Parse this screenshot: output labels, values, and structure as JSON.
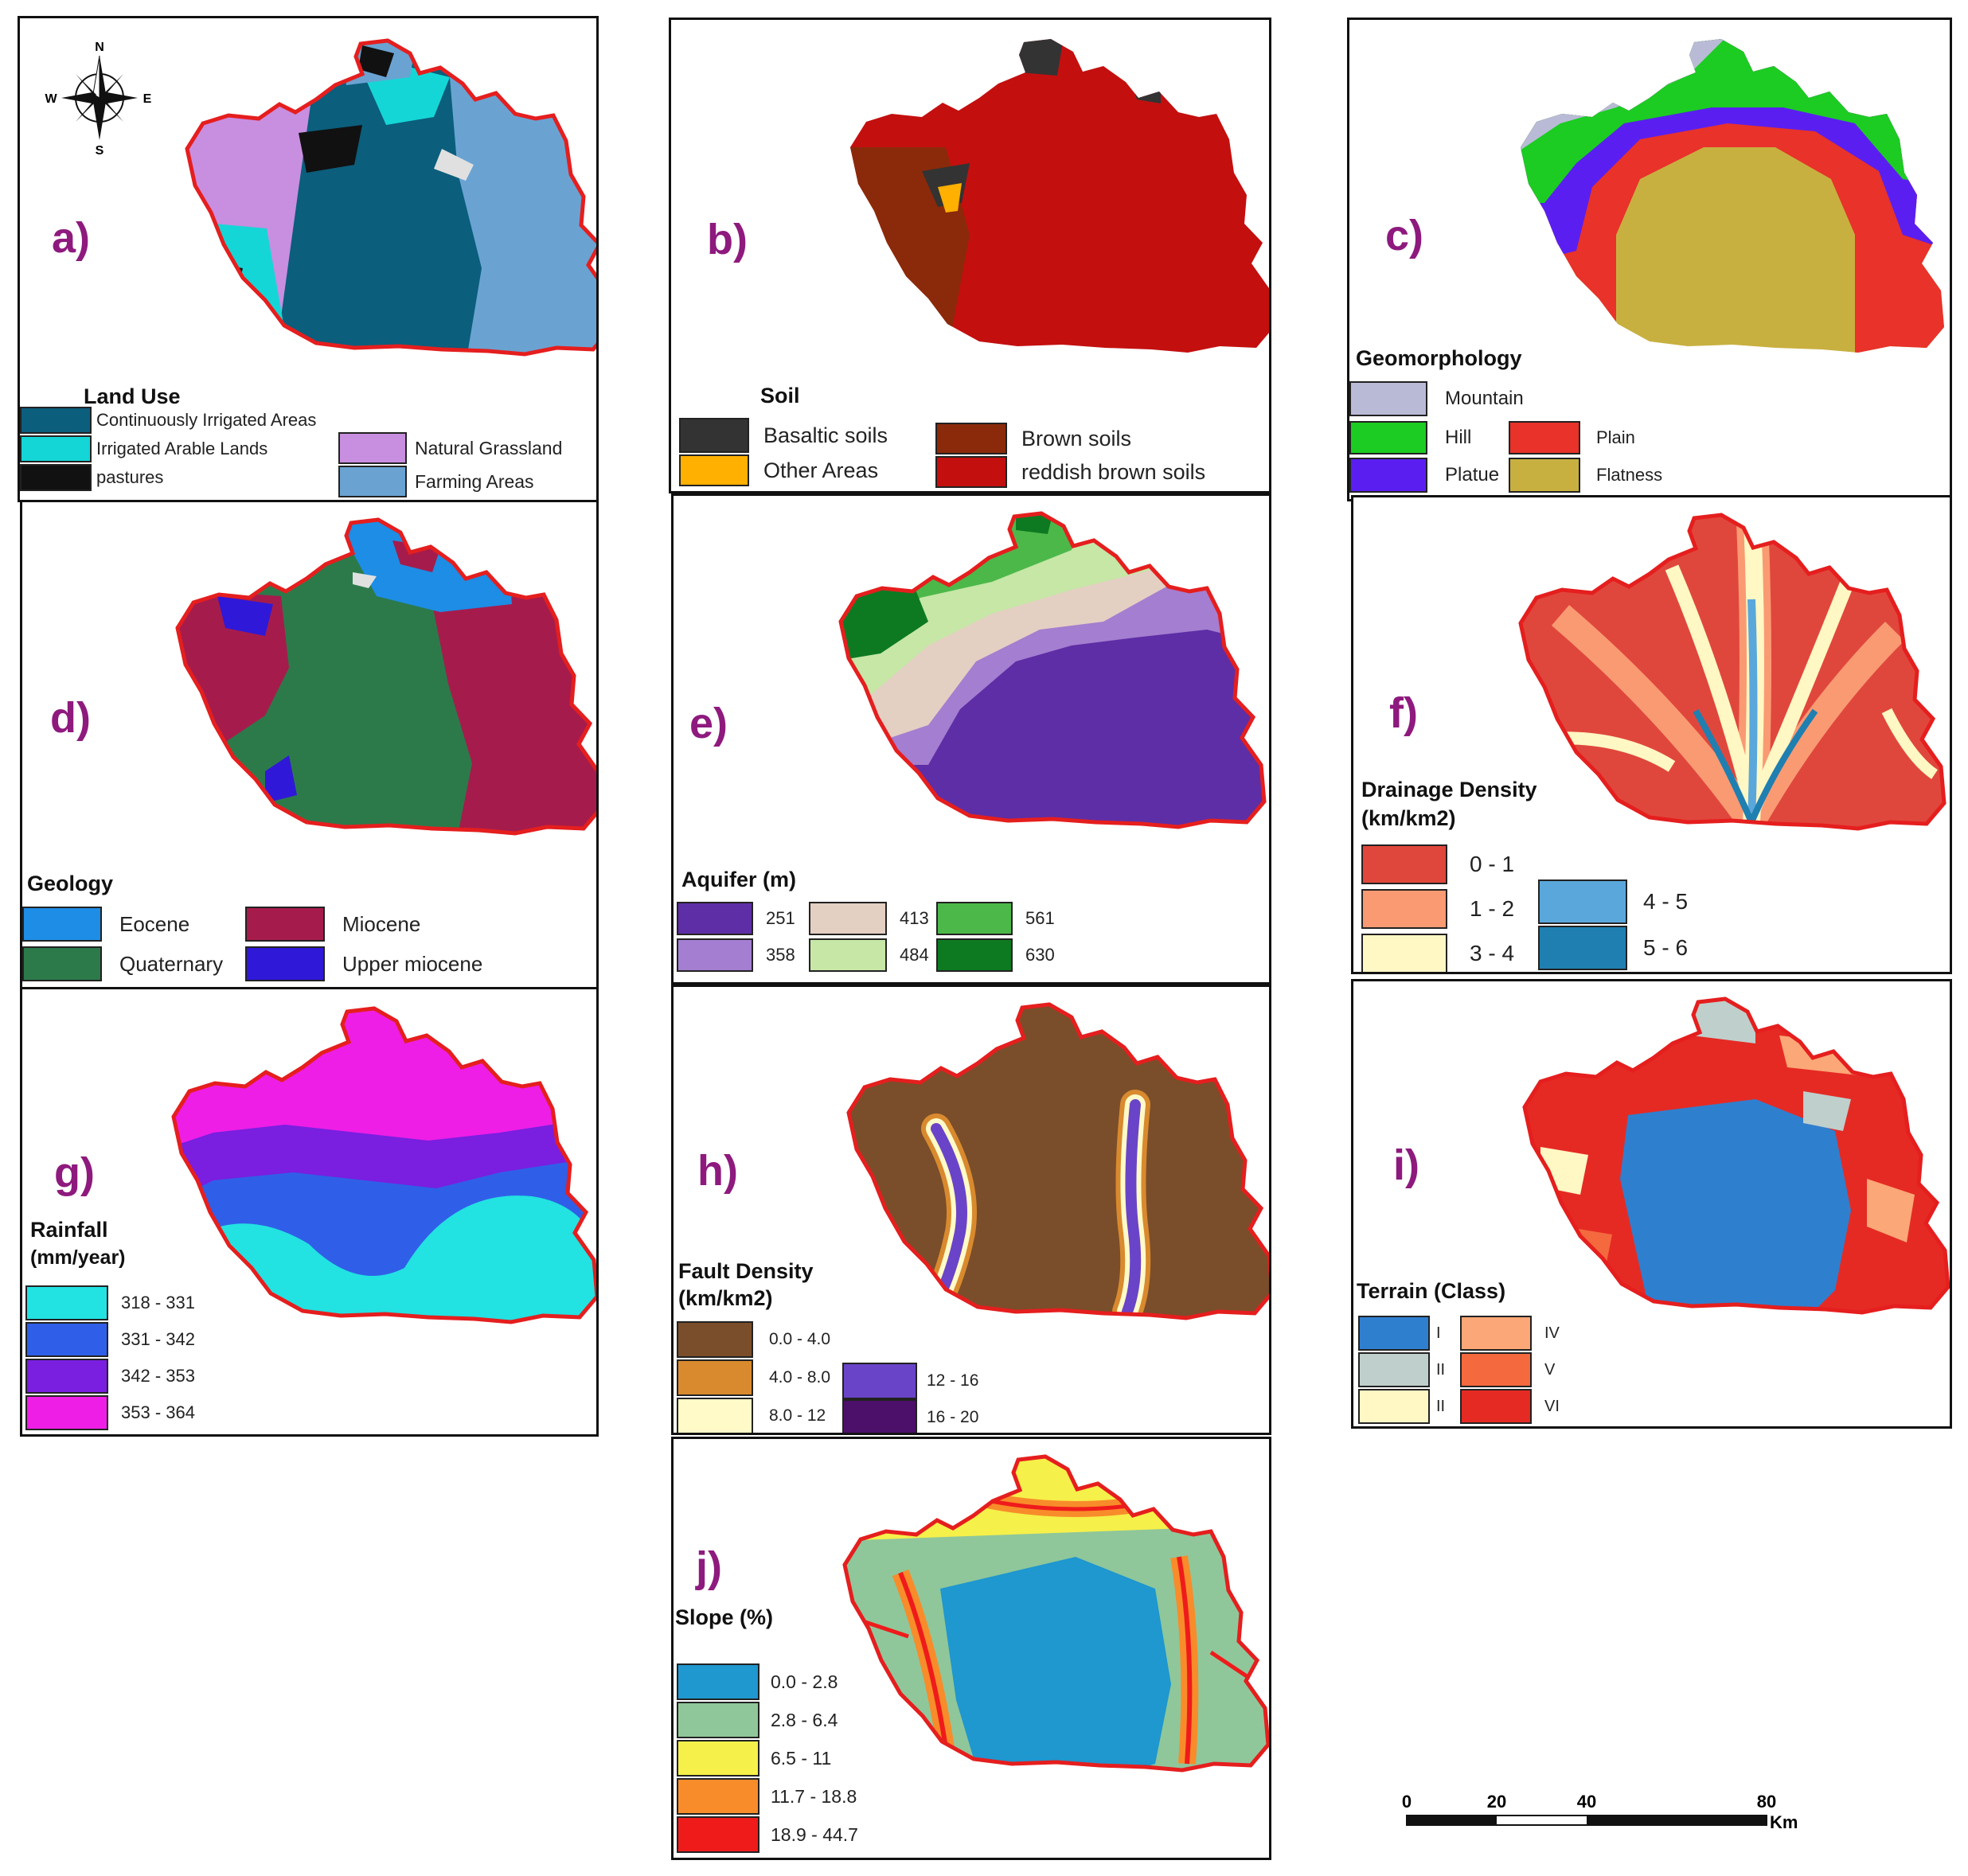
{
  "panels": {
    "a": {
      "label": "a)",
      "legend_title": "Land Use",
      "classes": [
        {
          "name": "Continuously Irrigated Areas",
          "color": "#0b5e7c"
        },
        {
          "name": "Irrigated Arable Lands",
          "color": "#15d6d6"
        },
        {
          "name": "pastures",
          "color": "#111111"
        },
        {
          "name": "Natural Grassland",
          "color": "#c88ee0"
        },
        {
          "name": "Farming Areas",
          "color": "#6aa3d2"
        }
      ]
    },
    "b": {
      "label": "b)",
      "legend_title": "Soil",
      "classes": [
        {
          "name": "Basaltic soils",
          "color": "#333333"
        },
        {
          "name": "Other Areas",
          "color": "#ffb000"
        },
        {
          "name": "Brown soils",
          "color": "#8a2a0a"
        },
        {
          "name": "reddish brown soils",
          "color": "#c40f0f"
        }
      ]
    },
    "c": {
      "label": "c)",
      "legend_title": "Geomorphology",
      "classes": [
        {
          "name": "Mountain",
          "color": "#b9bbd6"
        },
        {
          "name": "Hill",
          "color": "#1ccc22"
        },
        {
          "name": "Plain",
          "color": "#e8322a"
        },
        {
          "name": "Platue",
          "color": "#5a1ff0"
        },
        {
          "name": "Flatness",
          "color": "#c8b040"
        }
      ]
    },
    "d": {
      "label": "d)",
      "legend_title": "Geology",
      "classes": [
        {
          "name": "Eocene",
          "color": "#1d8de6"
        },
        {
          "name": "Miocene",
          "color": "#a51c4c"
        },
        {
          "name": "Quaternary",
          "color": "#2c7a4a"
        },
        {
          "name": "Upper miocene",
          "color": "#3018d8"
        }
      ]
    },
    "e": {
      "label": "e)",
      "legend_title": "Aquifer (m)",
      "classes": [
        {
          "name": "251",
          "color": "#5e2ea6"
        },
        {
          "name": "358",
          "color": "#a47ed0"
        },
        {
          "name": "413",
          "color": "#e4cfc3"
        },
        {
          "name": "484",
          "color": "#c6e7a6"
        },
        {
          "name": "561",
          "color": "#4db84a"
        },
        {
          "name": "630",
          "color": "#0d7a22"
        }
      ]
    },
    "f": {
      "label": "f)",
      "legend_title_1": "Drainage Density",
      "legend_title_2": "(km/km2)",
      "classes": [
        {
          "name": "0 - 1",
          "color": "#e0473c"
        },
        {
          "name": "1 - 2",
          "color": "#fa9a72"
        },
        {
          "name": "3 - 4",
          "color": "#fff7c4"
        },
        {
          "name": "4 - 5",
          "color": "#5aa7db"
        },
        {
          "name": "5 - 6",
          "color": "#1f7fb0"
        }
      ]
    },
    "g": {
      "label": "g)",
      "legend_title_1": "Rainfall",
      "legend_title_2": "(mm/year)",
      "classes": [
        {
          "name": "318 - 331",
          "color": "#22e2e2"
        },
        {
          "name": "331 - 342",
          "color": "#2f5fe8"
        },
        {
          "name": "342 - 353",
          "color": "#7a1ee0"
        },
        {
          "name": "353 - 364",
          "color": "#ee1ee6"
        }
      ]
    },
    "h": {
      "label": "h)",
      "legend_title_1": "Fault Density",
      "legend_title_2": "(km/km2)",
      "classes": [
        {
          "name": "0.0 - 4.0",
          "color": "#7a4e2a"
        },
        {
          "name": "4.0 - 8.0",
          "color": "#d98a2e"
        },
        {
          "name": "8.0 - 12",
          "color": "#fffac8"
        },
        {
          "name": "12 - 16",
          "color": "#6a44c8"
        },
        {
          "name": "16 - 20",
          "color": "#4c0f6a"
        }
      ]
    },
    "i": {
      "label": "i)",
      "legend_title": "Terrain (Class)",
      "classes": [
        {
          "name": "I",
          "color": "#2f7fcf"
        },
        {
          "name": "II",
          "color": "#bfcfcc"
        },
        {
          "name": "II",
          "color": "#fff7c4"
        },
        {
          "name": "IV",
          "color": "#fca777"
        },
        {
          "name": "V",
          "color": "#f4693e"
        },
        {
          "name": "VI",
          "color": "#e52a24"
        }
      ]
    },
    "j": {
      "label": "j)",
      "legend_title": "Slope (%)",
      "classes": [
        {
          "name": "0.0 - 2.8",
          "color": "#1f97cf"
        },
        {
          "name": "2.8 - 6.4",
          "color": "#8fc79a"
        },
        {
          "name": "6.5 - 11",
          "color": "#f5f04a"
        },
        {
          "name": "11.7 - 18.8",
          "color": "#f88c2a"
        },
        {
          "name": "18.9 - 44.7",
          "color": "#ef1b1b"
        }
      ]
    }
  },
  "compass": {
    "n": "N",
    "s": "S",
    "e": "E",
    "w": "W"
  },
  "scale": {
    "ticks": [
      "0",
      "20",
      "40",
      "80"
    ],
    "unit": "Km"
  },
  "boundary_color": "#e51e1e"
}
